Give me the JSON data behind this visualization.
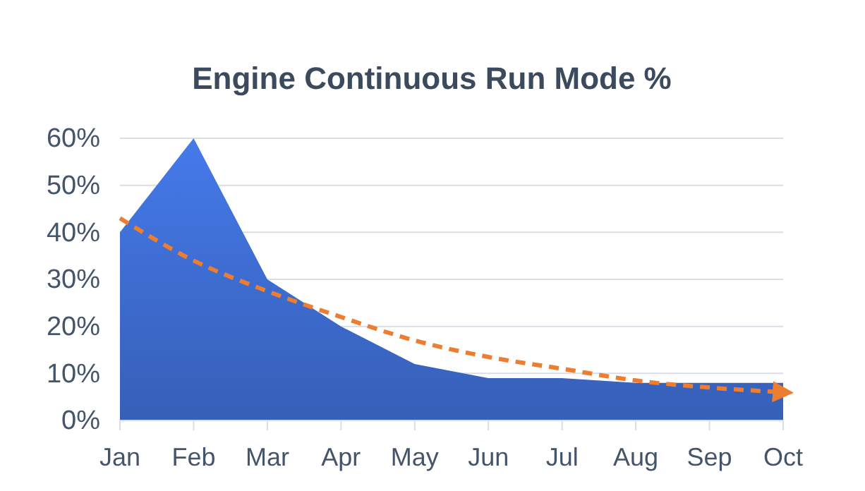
{
  "chart_data": {
    "type": "area",
    "title": "Engine Continuous Run Mode %",
    "categories": [
      "Jan",
      "Feb",
      "Mar",
      "Apr",
      "May",
      "Jun",
      "Jul",
      "Aug",
      "Sep",
      "Oct"
    ],
    "series": [
      {
        "color": "#3a66c4",
        "values": [
          40,
          60,
          30,
          20,
          12,
          9,
          9,
          8,
          8,
          8
        ]
      },
      {
        "type": "line",
        "color": "#ed7d31",
        "line_style": "dashed",
        "values": [
          43,
          34,
          27.5,
          22,
          17,
          13.5,
          11,
          8.5,
          7,
          6
        ]
      }
    ],
    "ylim": [
      0,
      60
    ],
    "yticks": [
      {
        "value": 0,
        "label": "0%"
      },
      {
        "value": 10,
        "label": "10%"
      },
      {
        "value": 20,
        "label": "20%"
      },
      {
        "value": 30,
        "label": "30%"
      },
      {
        "value": 40,
        "label": "40%"
      },
      {
        "value": 50,
        "label": "50%"
      },
      {
        "value": 60,
        "label": "60%"
      }
    ],
    "grid": "y"
  }
}
